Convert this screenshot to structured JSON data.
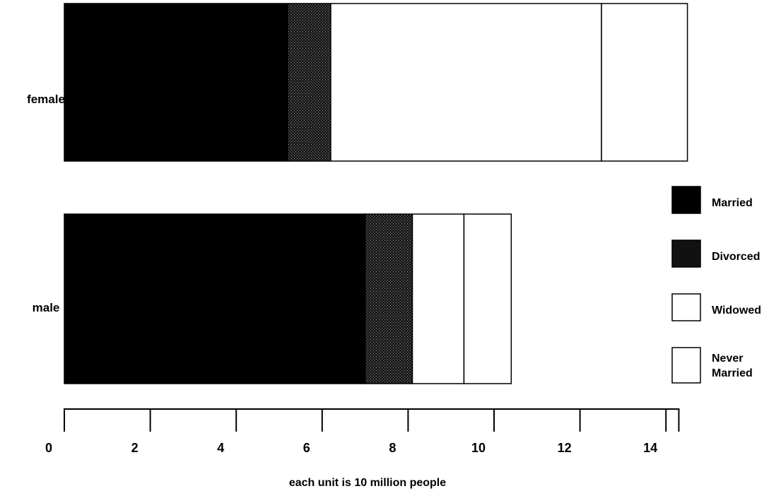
{
  "chart_data": {
    "type": "bar",
    "orientation": "horizontal",
    "stacked": true,
    "title": "",
    "xlabel": "each unit is 10 million people",
    "ylabel": "",
    "categories": [
      "female",
      "male"
    ],
    "series": [
      {
        "name": "Married",
        "values": [
          5.2,
          7.0
        ],
        "color": "#000000",
        "pattern": "solid"
      },
      {
        "name": "Divorced",
        "values": [
          1.0,
          1.1
        ],
        "color": "#262626",
        "pattern": "dotted"
      },
      {
        "name": "Widowed",
        "values": [
          6.3,
          1.2
        ],
        "color": "#ffffff",
        "pattern": "solid"
      },
      {
        "name": "Never Married",
        "values": [
          2.0,
          1.1
        ],
        "color": "#ffffff",
        "pattern": "solid"
      }
    ],
    "xlim": [
      0,
      14.3
    ],
    "xticks": [
      "0",
      "2",
      "4",
      "6",
      "8",
      "10",
      "12",
      "14"
    ],
    "legend_position": "right",
    "grid": false
  }
}
